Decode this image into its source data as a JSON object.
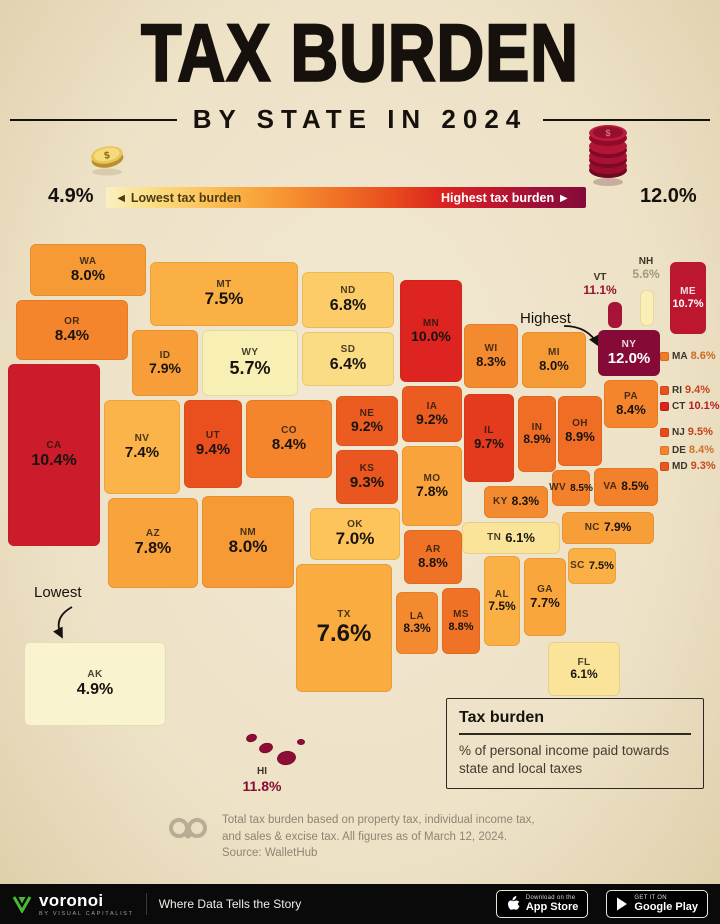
{
  "header": {
    "title": "TAX BURDEN",
    "subtitle": "BY STATE IN 2024"
  },
  "legend": {
    "min_value": "4.9%",
    "max_value": "12.0%",
    "low_label": "◄ Lowest tax burden",
    "high_label": "Highest tax burden ►",
    "gradient": [
      "#FAF0C0",
      "#FBDC82",
      "#FCC55B",
      "#F9A93D",
      "#F58B2E",
      "#EF6B24",
      "#E84A1D",
      "#DC2420",
      "#C2172E",
      "#9C1038",
      "#850A38"
    ]
  },
  "annotations": {
    "highest": "Highest",
    "lowest": "Lowest"
  },
  "chart_data": {
    "type": "choropleth-map",
    "title": "Tax Burden by State in 2024",
    "unit": "% of personal income",
    "range": [
      4.9,
      12.0
    ],
    "color_stops": [
      [
        4.9,
        "#FAF3CF"
      ],
      [
        5.7,
        "#F8EFB4"
      ],
      [
        6.4,
        "#FADC84"
      ],
      [
        7.0,
        "#FCC45A"
      ],
      [
        7.6,
        "#FAAC40"
      ],
      [
        8.0,
        "#F69A36"
      ],
      [
        8.5,
        "#F3802A"
      ],
      [
        9.0,
        "#EE6823"
      ],
      [
        9.5,
        "#E84A1D"
      ],
      [
        10.0,
        "#DD2420"
      ],
      [
        10.5,
        "#C8192C"
      ],
      [
        11.1,
        "#A81337"
      ],
      [
        12.0,
        "#850A38"
      ]
    ],
    "states": [
      {
        "code": "WA",
        "value": 8.0
      },
      {
        "code": "OR",
        "value": 8.4
      },
      {
        "code": "CA",
        "value": 10.4
      },
      {
        "code": "NV",
        "value": 7.4
      },
      {
        "code": "ID",
        "value": 7.9
      },
      {
        "code": "MT",
        "value": 7.5
      },
      {
        "code": "WY",
        "value": 5.7
      },
      {
        "code": "UT",
        "value": 9.4
      },
      {
        "code": "CO",
        "value": 8.4
      },
      {
        "code": "AZ",
        "value": 7.8
      },
      {
        "code": "NM",
        "value": 8.0
      },
      {
        "code": "ND",
        "value": 6.8
      },
      {
        "code": "SD",
        "value": 6.4
      },
      {
        "code": "NE",
        "value": 9.2
      },
      {
        "code": "KS",
        "value": 9.3
      },
      {
        "code": "OK",
        "value": 7.0
      },
      {
        "code": "TX",
        "value": 7.6
      },
      {
        "code": "MN",
        "value": 10.0
      },
      {
        "code": "IA",
        "value": 9.2
      },
      {
        "code": "MO",
        "value": 7.8
      },
      {
        "code": "AR",
        "value": 8.8
      },
      {
        "code": "LA",
        "value": 8.3
      },
      {
        "code": "WI",
        "value": 8.3
      },
      {
        "code": "IL",
        "value": 9.7
      },
      {
        "code": "MI",
        "value": 8.0
      },
      {
        "code": "IN",
        "value": 8.9
      },
      {
        "code": "OH",
        "value": 8.9
      },
      {
        "code": "KY",
        "value": 8.3
      },
      {
        "code": "TN",
        "value": 6.1
      },
      {
        "code": "MS",
        "value": 8.8
      },
      {
        "code": "AL",
        "value": 7.5
      },
      {
        "code": "GA",
        "value": 7.7
      },
      {
        "code": "FL",
        "value": 6.1
      },
      {
        "code": "SC",
        "value": 7.5
      },
      {
        "code": "NC",
        "value": 7.9
      },
      {
        "code": "VA",
        "value": 8.5
      },
      {
        "code": "WV",
        "value": 8.5
      },
      {
        "code": "PA",
        "value": 8.4
      },
      {
        "code": "NY",
        "value": 12.0
      },
      {
        "code": "VT",
        "value": 11.1
      },
      {
        "code": "NH",
        "value": 5.6
      },
      {
        "code": "ME",
        "value": 10.7
      },
      {
        "code": "MA",
        "value": 8.6
      },
      {
        "code": "RI",
        "value": 9.4
      },
      {
        "code": "CT",
        "value": 10.1
      },
      {
        "code": "NJ",
        "value": 9.5
      },
      {
        "code": "DE",
        "value": 8.4
      },
      {
        "code": "MD",
        "value": 9.3
      },
      {
        "code": "AK",
        "value": 4.9
      },
      {
        "code": "HI",
        "value": 11.8
      }
    ]
  },
  "info_box": {
    "title": "Tax burden",
    "body": "% of personal income paid towards state and local taxes"
  },
  "footnote": {
    "text": "Total tax burden based on property tax, individual income tax, and sales & excise tax. All figures as of March 12, 2024.",
    "source": "Source: WalletHub"
  },
  "footer": {
    "brand": "voronoi",
    "brand_sub": "BY VISUAL CAPITALIST",
    "tagline": "Where Data Tells the Story",
    "badges": [
      {
        "top": "Download on the",
        "bottom": "App Store"
      },
      {
        "top": "GET IT ON",
        "bottom": "Google Play"
      }
    ]
  },
  "colors": {
    "background": "#EFE4CC",
    "title": "#16110C",
    "footer_bg": "#0A0A0A",
    "brand_green": "#49B838"
  }
}
